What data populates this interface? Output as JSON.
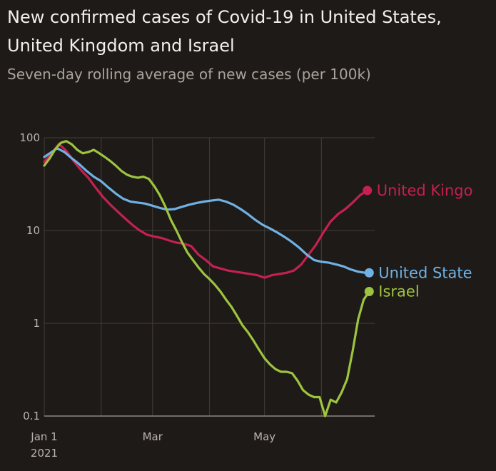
{
  "chart_data": {
    "type": "line",
    "title": "New confirmed cases of Covid-19 in United States, United Kingdom and Israel",
    "subtitle": "Seven-day rolling average of new cases (per 100k)",
    "y_scale": "log",
    "ylim": [
      0.1,
      100
    ],
    "y_ticks": [
      {
        "value": 100,
        "label": "100"
      },
      {
        "value": 10,
        "label": "10"
      },
      {
        "value": 1,
        "label": "1"
      },
      {
        "value": 0.1,
        "label": "0.1"
      }
    ],
    "xlim": [
      "2021-01-01",
      "2021-06-30"
    ],
    "x_ticks": [
      {
        "date": "2021-01-01",
        "label": "Jan 1",
        "sublabel": "2021"
      },
      {
        "date": "2021-03-01",
        "label": "Mar",
        "sublabel": ""
      },
      {
        "date": "2021-05-01",
        "label": "May",
        "sublabel": ""
      }
    ],
    "grid": true,
    "series": [
      {
        "name": "United Kingdom",
        "label": "United Kingo",
        "color": "#c4214f",
        "points": [
          [
            "2021-01-01",
            55
          ],
          [
            "2021-01-05",
            68
          ],
          [
            "2021-01-09",
            86
          ],
          [
            "2021-01-13",
            72
          ],
          [
            "2021-01-17",
            56
          ],
          [
            "2021-01-21",
            45
          ],
          [
            "2021-01-25",
            37
          ],
          [
            "2021-01-29",
            29
          ],
          [
            "2021-02-02",
            23
          ],
          [
            "2021-02-06",
            19
          ],
          [
            "2021-02-10",
            16
          ],
          [
            "2021-02-14",
            13.5
          ],
          [
            "2021-02-18",
            11.5
          ],
          [
            "2021-02-22",
            10
          ],
          [
            "2021-02-26",
            9
          ],
          [
            "2021-03-02",
            8.6
          ],
          [
            "2021-03-06",
            8.3
          ],
          [
            "2021-03-10",
            7.8
          ],
          [
            "2021-03-14",
            7.4
          ],
          [
            "2021-03-18",
            7.2
          ],
          [
            "2021-03-22",
            6.8
          ],
          [
            "2021-03-26",
            5.5
          ],
          [
            "2021-03-30",
            4.8
          ],
          [
            "2021-04-03",
            4.1
          ],
          [
            "2021-04-07",
            3.9
          ],
          [
            "2021-04-11",
            3.7
          ],
          [
            "2021-04-15",
            3.6
          ],
          [
            "2021-04-19",
            3.5
          ],
          [
            "2021-04-23",
            3.4
          ],
          [
            "2021-04-27",
            3.3
          ],
          [
            "2021-05-01",
            3.1
          ],
          [
            "2021-05-05",
            3.3
          ],
          [
            "2021-05-09",
            3.4
          ],
          [
            "2021-05-13",
            3.5
          ],
          [
            "2021-05-17",
            3.7
          ],
          [
            "2021-05-21",
            4.3
          ],
          [
            "2021-05-25",
            5.5
          ],
          [
            "2021-05-29",
            7
          ],
          [
            "2021-06-02",
            9.5
          ],
          [
            "2021-06-06",
            12.5
          ],
          [
            "2021-06-10",
            15
          ],
          [
            "2021-06-14",
            17
          ],
          [
            "2021-06-18",
            20
          ],
          [
            "2021-06-22",
            24
          ],
          [
            "2021-06-26",
            27
          ]
        ]
      },
      {
        "name": "United States",
        "label": "United State",
        "color": "#6fb1e4",
        "points": [
          [
            "2021-01-01",
            62
          ],
          [
            "2021-01-05",
            70
          ],
          [
            "2021-01-08",
            77
          ],
          [
            "2021-01-12",
            70
          ],
          [
            "2021-01-16",
            60
          ],
          [
            "2021-01-20",
            52
          ],
          [
            "2021-01-24",
            44
          ],
          [
            "2021-01-28",
            38
          ],
          [
            "2021-02-01",
            34
          ],
          [
            "2021-02-05",
            29
          ],
          [
            "2021-02-09",
            25
          ],
          [
            "2021-02-13",
            22
          ],
          [
            "2021-02-17",
            20.5
          ],
          [
            "2021-02-21",
            20
          ],
          [
            "2021-02-25",
            19.5
          ],
          [
            "2021-03-01",
            18.5
          ],
          [
            "2021-03-05",
            17.5
          ],
          [
            "2021-03-09",
            16.8
          ],
          [
            "2021-03-13",
            17
          ],
          [
            "2021-03-17",
            18
          ],
          [
            "2021-03-21",
            19
          ],
          [
            "2021-03-25",
            19.8
          ],
          [
            "2021-03-29",
            20.5
          ],
          [
            "2021-04-02",
            21
          ],
          [
            "2021-04-06",
            21.5
          ],
          [
            "2021-04-10",
            20.5
          ],
          [
            "2021-04-14",
            19
          ],
          [
            "2021-04-18",
            17
          ],
          [
            "2021-04-22",
            15
          ],
          [
            "2021-04-26",
            13
          ],
          [
            "2021-04-30",
            11.5
          ],
          [
            "2021-05-04",
            10.5
          ],
          [
            "2021-05-08",
            9.5
          ],
          [
            "2021-05-12",
            8.5
          ],
          [
            "2021-05-16",
            7.5
          ],
          [
            "2021-05-20",
            6.5
          ],
          [
            "2021-05-24",
            5.5
          ],
          [
            "2021-05-28",
            4.8
          ],
          [
            "2021-06-01",
            4.6
          ],
          [
            "2021-06-05",
            4.5
          ],
          [
            "2021-06-09",
            4.3
          ],
          [
            "2021-06-13",
            4.1
          ],
          [
            "2021-06-17",
            3.8
          ],
          [
            "2021-06-21",
            3.6
          ],
          [
            "2021-06-25",
            3.5
          ],
          [
            "2021-06-27",
            3.5
          ]
        ]
      },
      {
        "name": "Israel",
        "label": "Israel",
        "color": "#9dc43f",
        "points": [
          [
            "2021-01-01",
            50
          ],
          [
            "2021-01-04",
            60
          ],
          [
            "2021-01-07",
            75
          ],
          [
            "2021-01-10",
            88
          ],
          [
            "2021-01-13",
            92
          ],
          [
            "2021-01-16",
            85
          ],
          [
            "2021-01-19",
            74
          ],
          [
            "2021-01-22",
            68
          ],
          [
            "2021-01-25",
            70
          ],
          [
            "2021-01-28",
            74
          ],
          [
            "2021-01-31",
            68
          ],
          [
            "2021-02-03",
            62
          ],
          [
            "2021-02-06",
            56
          ],
          [
            "2021-02-09",
            50
          ],
          [
            "2021-02-12",
            44
          ],
          [
            "2021-02-15",
            40
          ],
          [
            "2021-02-18",
            38
          ],
          [
            "2021-02-21",
            37
          ],
          [
            "2021-02-24",
            38
          ],
          [
            "2021-02-27",
            36
          ],
          [
            "2021-03-02",
            30
          ],
          [
            "2021-03-05",
            24
          ],
          [
            "2021-03-08",
            18
          ],
          [
            "2021-03-11",
            13
          ],
          [
            "2021-03-14",
            10
          ],
          [
            "2021-03-17",
            7.5
          ],
          [
            "2021-03-20",
            5.8
          ],
          [
            "2021-03-23",
            4.8
          ],
          [
            "2021-03-26",
            4.0
          ],
          [
            "2021-03-29",
            3.4
          ],
          [
            "2021-04-01",
            3.0
          ],
          [
            "2021-04-04",
            2.6
          ],
          [
            "2021-04-07",
            2.2
          ],
          [
            "2021-04-10",
            1.8
          ],
          [
            "2021-04-13",
            1.5
          ],
          [
            "2021-04-16",
            1.2
          ],
          [
            "2021-04-19",
            0.95
          ],
          [
            "2021-04-22",
            0.8
          ],
          [
            "2021-04-25",
            0.65
          ],
          [
            "2021-04-28",
            0.52
          ],
          [
            "2021-05-01",
            0.42
          ],
          [
            "2021-05-04",
            0.36
          ],
          [
            "2021-05-07",
            0.32
          ],
          [
            "2021-05-10",
            0.3
          ],
          [
            "2021-05-13",
            0.3
          ],
          [
            "2021-05-16",
            0.29
          ],
          [
            "2021-05-19",
            0.24
          ],
          [
            "2021-05-22",
            0.19
          ],
          [
            "2021-05-25",
            0.17
          ],
          [
            "2021-05-28",
            0.16
          ],
          [
            "2021-05-31",
            0.16
          ],
          [
            "2021-06-03",
            0.1
          ],
          [
            "2021-06-06",
            0.15
          ],
          [
            "2021-06-09",
            0.14
          ],
          [
            "2021-06-12",
            0.18
          ],
          [
            "2021-06-15",
            0.25
          ],
          [
            "2021-06-18",
            0.5
          ],
          [
            "2021-06-21",
            1.1
          ],
          [
            "2021-06-24",
            1.8
          ],
          [
            "2021-06-27",
            2.2
          ]
        ]
      }
    ]
  }
}
